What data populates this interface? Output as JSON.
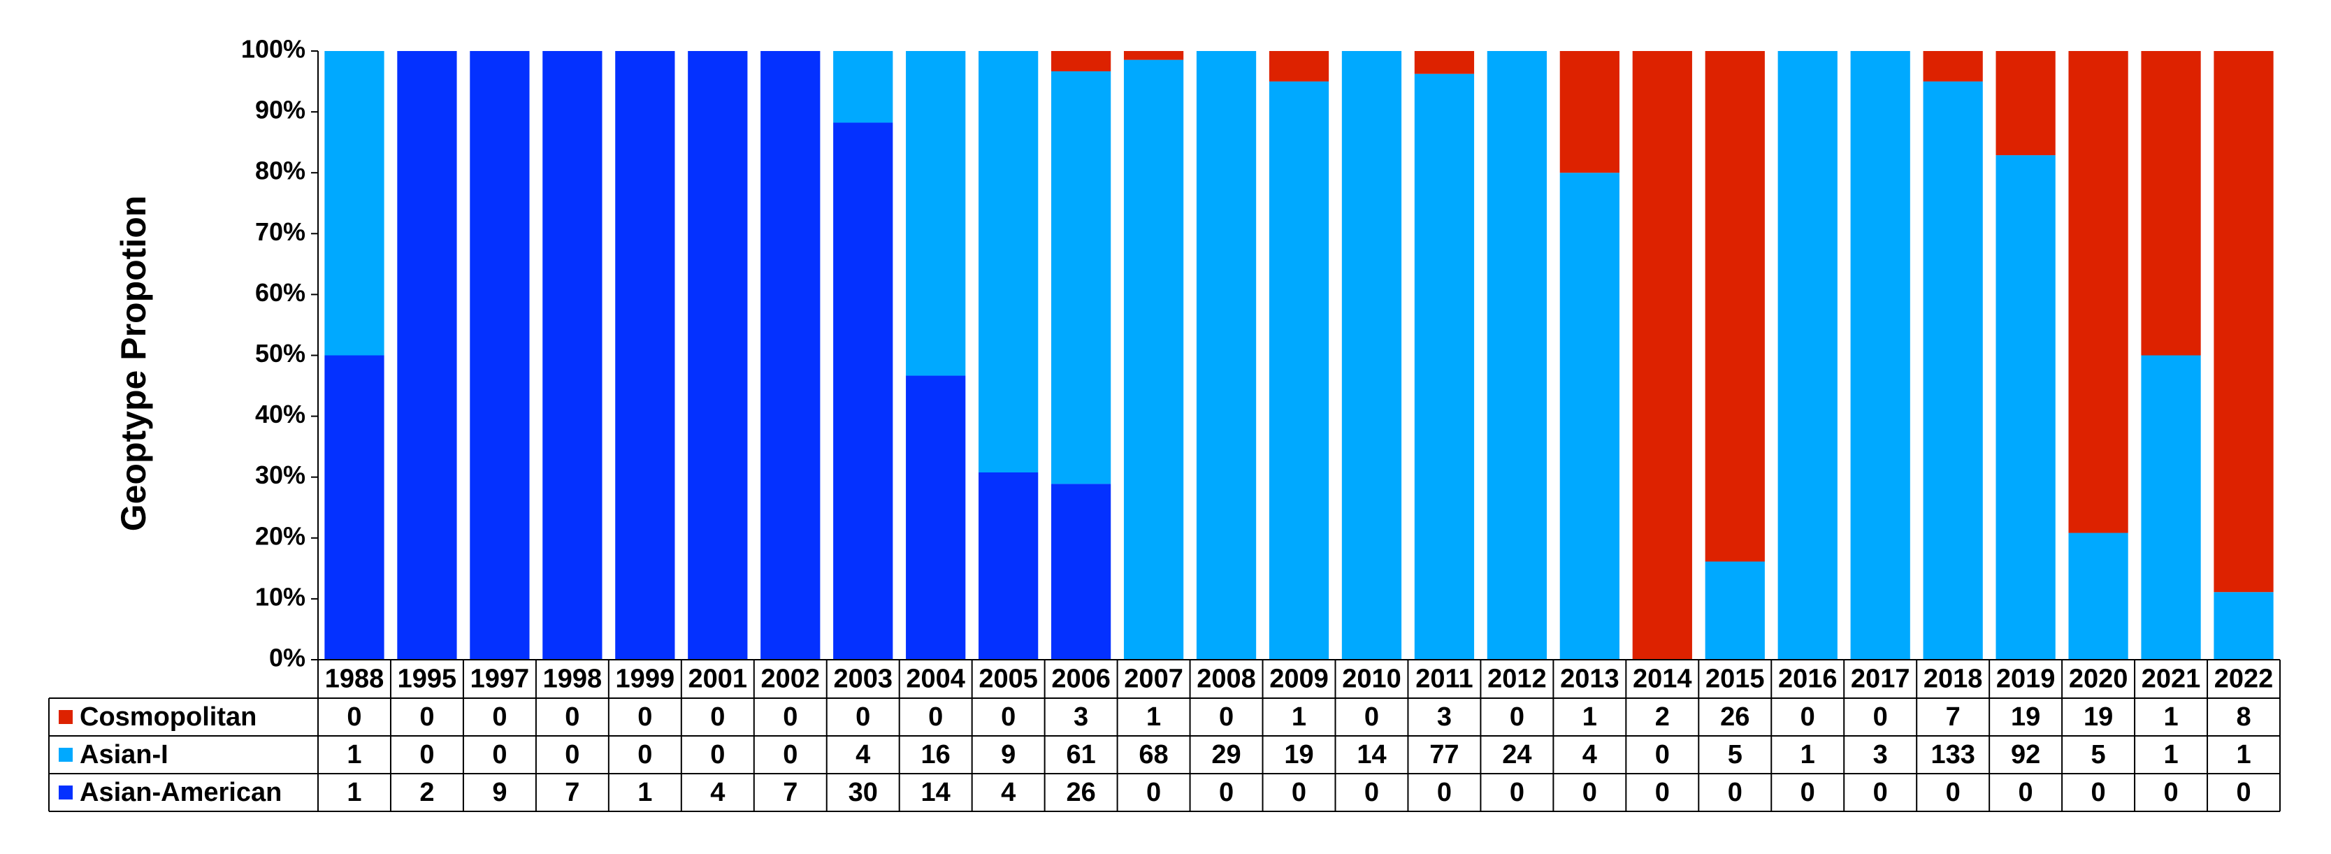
{
  "chart_data": {
    "type": "bar",
    "stacked": true,
    "normalized": true,
    "title": "",
    "xlabel": "",
    "ylabel": "Geoptype Propotion",
    "ylim": [
      0,
      100
    ],
    "yticks": [
      "0%",
      "10%",
      "20%",
      "30%",
      "40%",
      "50%",
      "60%",
      "70%",
      "80%",
      "90%",
      "100%"
    ],
    "grid": false,
    "legend": "data-table-left",
    "categories": [
      "1988",
      "1995",
      "1997",
      "1998",
      "1999",
      "2001",
      "2002",
      "2003",
      "2004",
      "2005",
      "2006",
      "2007",
      "2008",
      "2009",
      "2010",
      "2011",
      "2012",
      "2013",
      "2014",
      "2015",
      "2016",
      "2017",
      "2018",
      "2019",
      "2020",
      "2021",
      "2022"
    ],
    "series": [
      {
        "name": "Cosmopolitan",
        "color": "#DD2200",
        "values": [
          0,
          0,
          0,
          0,
          0,
          0,
          0,
          0,
          0,
          0,
          3,
          1,
          0,
          1,
          0,
          3,
          0,
          1,
          2,
          26,
          0,
          0,
          7,
          19,
          19,
          1,
          8
        ]
      },
      {
        "name": "Asian-I",
        "color": "#00A9FF",
        "values": [
          1,
          0,
          0,
          0,
          0,
          0,
          0,
          4,
          16,
          9,
          61,
          68,
          29,
          19,
          14,
          77,
          24,
          4,
          0,
          5,
          1,
          3,
          133,
          92,
          5,
          1,
          1
        ]
      },
      {
        "name": "Asian-American",
        "color": "#0431FF",
        "values": [
          1,
          2,
          9,
          7,
          1,
          4,
          7,
          30,
          14,
          4,
          26,
          0,
          0,
          0,
          0,
          0,
          0,
          0,
          0,
          0,
          0,
          0,
          0,
          0,
          0,
          0,
          0
        ]
      }
    ]
  }
}
